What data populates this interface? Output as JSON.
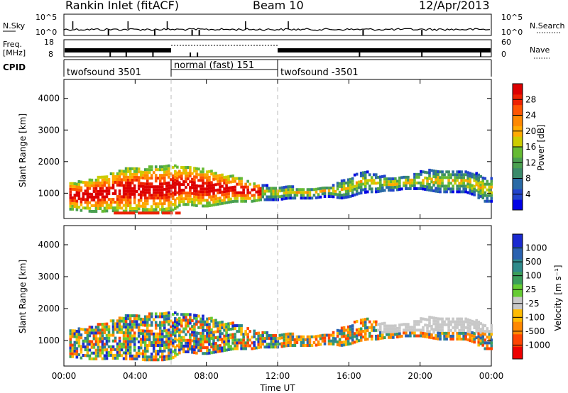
{
  "chart_data": {
    "type": "heatmap",
    "header": {
      "station": "Rankin Inlet (fitACF)",
      "beam": "Beam 10",
      "date": "12/Apr/2013"
    },
    "time_axis": {
      "label": "Time UT",
      "ticks": [
        "00:00",
        "04:00",
        "08:00",
        "12:00",
        "16:00",
        "20:00",
        "00:00"
      ],
      "range_hours": [
        0,
        24
      ]
    },
    "noise_panel": {
      "left_label": "N.Sky",
      "right_label": "N.Search",
      "left_ticks": [
        "10^5",
        "10^0"
      ],
      "right_ticks": [
        "10^5",
        "10^0"
      ]
    },
    "freq_panel": {
      "left_label": "Freq.",
      "left_unit": "[MHz]",
      "left_ticks": [
        "18",
        "8"
      ],
      "right_label": "Nave",
      "right_ticks": [
        "60",
        "0"
      ]
    },
    "cpid": {
      "label": "CPID",
      "segments": [
        {
          "name": "twofsound 3501",
          "start_h": 0,
          "end_h": 6
        },
        {
          "name": "normal (fast) 151",
          "start_h": 6,
          "end_h": 12
        },
        {
          "name": "twofsound -3501",
          "start_h": 12,
          "end_h": 24
        }
      ]
    },
    "power_panel": {
      "ylabel": "Slant Range [km]",
      "yticks": [
        1000,
        2000,
        3000,
        4000
      ],
      "ylim": [
        200,
        4600
      ],
      "colorbar_label": "Power [dB]",
      "colorbar_ticks": [
        "28",
        "24",
        "20",
        "16",
        "12",
        "8",
        "4"
      ],
      "colors": [
        "#0000e6",
        "#2244cc",
        "#2a6aa6",
        "#3a8a6a",
        "#4aa050",
        "#66bb33",
        "#cccc00",
        "#ffaa00",
        "#ff8800",
        "#ff5500",
        "#ee2200",
        "#dd0000"
      ]
    },
    "velocity_panel": {
      "ylabel": "Slant Range [km]",
      "yticks": [
        1000,
        2000,
        3000,
        4000
      ],
      "ylim": [
        200,
        4600
      ],
      "colorbar_label": "Velocity [m s⁻¹]",
      "colorbar_ticks": [
        "1000",
        "500",
        "100",
        "25",
        "-25",
        "-100",
        "-500",
        "-1000"
      ],
      "colors": [
        "#1a2ad0",
        "#2a62b0",
        "#2e8a8a",
        "#3a9e5a",
        "#66cc33",
        "#c8c8c8",
        "#ffbb00",
        "#ff8800",
        "#ff4400",
        "#ee0000"
      ]
    },
    "echo_envelope": [
      {
        "h": 0.5,
        "lo": 450,
        "hi": 1300
      },
      {
        "h": 1,
        "lo": 400,
        "hi": 1350
      },
      {
        "h": 1.5,
        "lo": 380,
        "hi": 1400
      },
      {
        "h": 2,
        "lo": 380,
        "hi": 1500
      },
      {
        "h": 2.5,
        "lo": 400,
        "hi": 1550
      },
      {
        "h": 3,
        "lo": 400,
        "hi": 1700
      },
      {
        "h": 3.5,
        "lo": 380,
        "hi": 1750
      },
      {
        "h": 4,
        "lo": 380,
        "hi": 1800
      },
      {
        "h": 4.5,
        "lo": 350,
        "hi": 1750
      },
      {
        "h": 5,
        "lo": 350,
        "hi": 1850
      },
      {
        "h": 5.5,
        "lo": 350,
        "hi": 1800
      },
      {
        "h": 6,
        "lo": 400,
        "hi": 1850
      },
      {
        "h": 6.5,
        "lo": 600,
        "hi": 1800
      },
      {
        "h": 7,
        "lo": 600,
        "hi": 1800
      },
      {
        "h": 7.5,
        "lo": 550,
        "hi": 1750
      },
      {
        "h": 8,
        "lo": 550,
        "hi": 1700
      },
      {
        "h": 8.5,
        "lo": 600,
        "hi": 1650
      },
      {
        "h": 9,
        "lo": 650,
        "hi": 1550
      },
      {
        "h": 9.5,
        "lo": 700,
        "hi": 1500
      },
      {
        "h": 10,
        "lo": 700,
        "hi": 1400
      },
      {
        "h": 10.5,
        "lo": 700,
        "hi": 1300
      },
      {
        "h": 11,
        "lo": 750,
        "hi": 1250
      },
      {
        "h": 11.5,
        "lo": 750,
        "hi": 1200
      },
      {
        "h": 12,
        "lo": 750,
        "hi": 1200
      },
      {
        "h": 12.5,
        "lo": 800,
        "hi": 1200
      },
      {
        "h": 13,
        "lo": 800,
        "hi": 1150
      },
      {
        "h": 13.5,
        "lo": 800,
        "hi": 1150
      },
      {
        "h": 14,
        "lo": 800,
        "hi": 1150
      },
      {
        "h": 14.5,
        "lo": 850,
        "hi": 1200
      },
      {
        "h": 15,
        "lo": 850,
        "hi": 1200
      },
      {
        "h": 15.5,
        "lo": 800,
        "hi": 1350
      },
      {
        "h": 16,
        "lo": 850,
        "hi": 1450
      },
      {
        "h": 16.5,
        "lo": 950,
        "hi": 1650
      },
      {
        "h": 17,
        "lo": 1000,
        "hi": 1650
      },
      {
        "h": 17.5,
        "lo": 1000,
        "hi": 1550
      },
      {
        "h": 18,
        "lo": 1050,
        "hi": 1500
      },
      {
        "h": 18.5,
        "lo": 1050,
        "hi": 1450
      },
      {
        "h": 19,
        "lo": 1100,
        "hi": 1500
      },
      {
        "h": 19.5,
        "lo": 1100,
        "hi": 1550
      },
      {
        "h": 20,
        "lo": 1100,
        "hi": 1650
      },
      {
        "h": 20.5,
        "lo": 1050,
        "hi": 1700
      },
      {
        "h": 21,
        "lo": 1000,
        "hi": 1700
      },
      {
        "h": 21.5,
        "lo": 1000,
        "hi": 1700
      },
      {
        "h": 22,
        "lo": 1000,
        "hi": 1650
      },
      {
        "h": 22.5,
        "lo": 1000,
        "hi": 1650
      },
      {
        "h": 23,
        "lo": 900,
        "hi": 1600
      },
      {
        "h": 23.5,
        "lo": 700,
        "hi": 1500
      }
    ]
  }
}
